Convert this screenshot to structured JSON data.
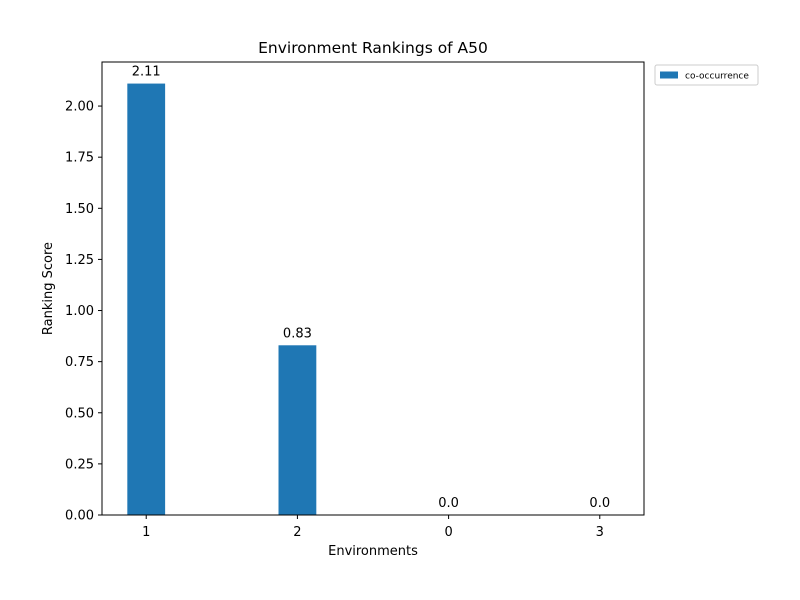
{
  "chart_data": {
    "type": "bar",
    "title": "Environment Rankings of A50",
    "xlabel": "Environments",
    "ylabel": "Ranking Score",
    "categories": [
      "1",
      "2",
      "0",
      "3"
    ],
    "series": [
      {
        "name": "co-occurrence",
        "values": [
          2.11,
          0.83,
          0.0,
          0.0
        ],
        "value_labels": [
          "2.11",
          "0.83",
          "0.0",
          "0.0"
        ],
        "color": "#1f77b4"
      }
    ],
    "ylim": [
      0,
      2.2155
    ],
    "yticks": [
      0.0,
      0.25,
      0.5,
      0.75,
      1.0,
      1.25,
      1.5,
      1.75,
      2.0
    ],
    "ytick_labels": [
      "0.00",
      "0.25",
      "0.50",
      "0.75",
      "1.00",
      "1.25",
      "1.50",
      "1.75",
      "2.00"
    ],
    "grid": false,
    "legend_position": "outside-top-right"
  }
}
